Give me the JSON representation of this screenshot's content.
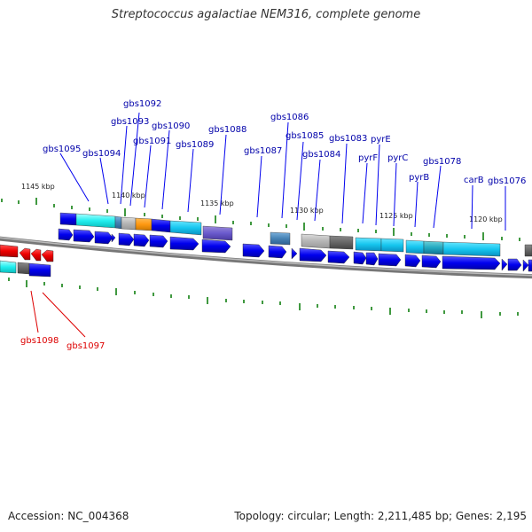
{
  "title": "Streptococcus agalactiae NEM316, complete genome",
  "footer": {
    "accession": "Accession: NC_004368",
    "summary": "Topology: circular; Length: 2,211,485 bp; Genes: 2,195"
  },
  "scale_labels": [
    "1145 kbp",
    "1140 kbp",
    "1135 kbp",
    "1130 kbp",
    "1125 kbp",
    "1120 kbp"
  ],
  "top_gene_labels": [
    "gbs1095",
    "gbs1094",
    "gbs1093",
    "gbs1092",
    "gbs1091",
    "gbs1090",
    "gbs1089",
    "gbs1088",
    "gbs1087",
    "gbs1086",
    "gbs1085",
    "gbs1084",
    "gbs1083",
    "pyrF",
    "pyrE",
    "pyrC",
    "pyrB",
    "gbs1078",
    "carB",
    "gbs1076"
  ],
  "bottom_gene_labels": [
    "gbs1098",
    "gbs1097"
  ],
  "colors": {
    "label_blue": "#0000aa",
    "label_red": "#dd0000",
    "arrow_blue": "#0000ee",
    "arrow_red": "#ee0000",
    "tick_green": "#007700",
    "backbone": "#888888"
  }
}
